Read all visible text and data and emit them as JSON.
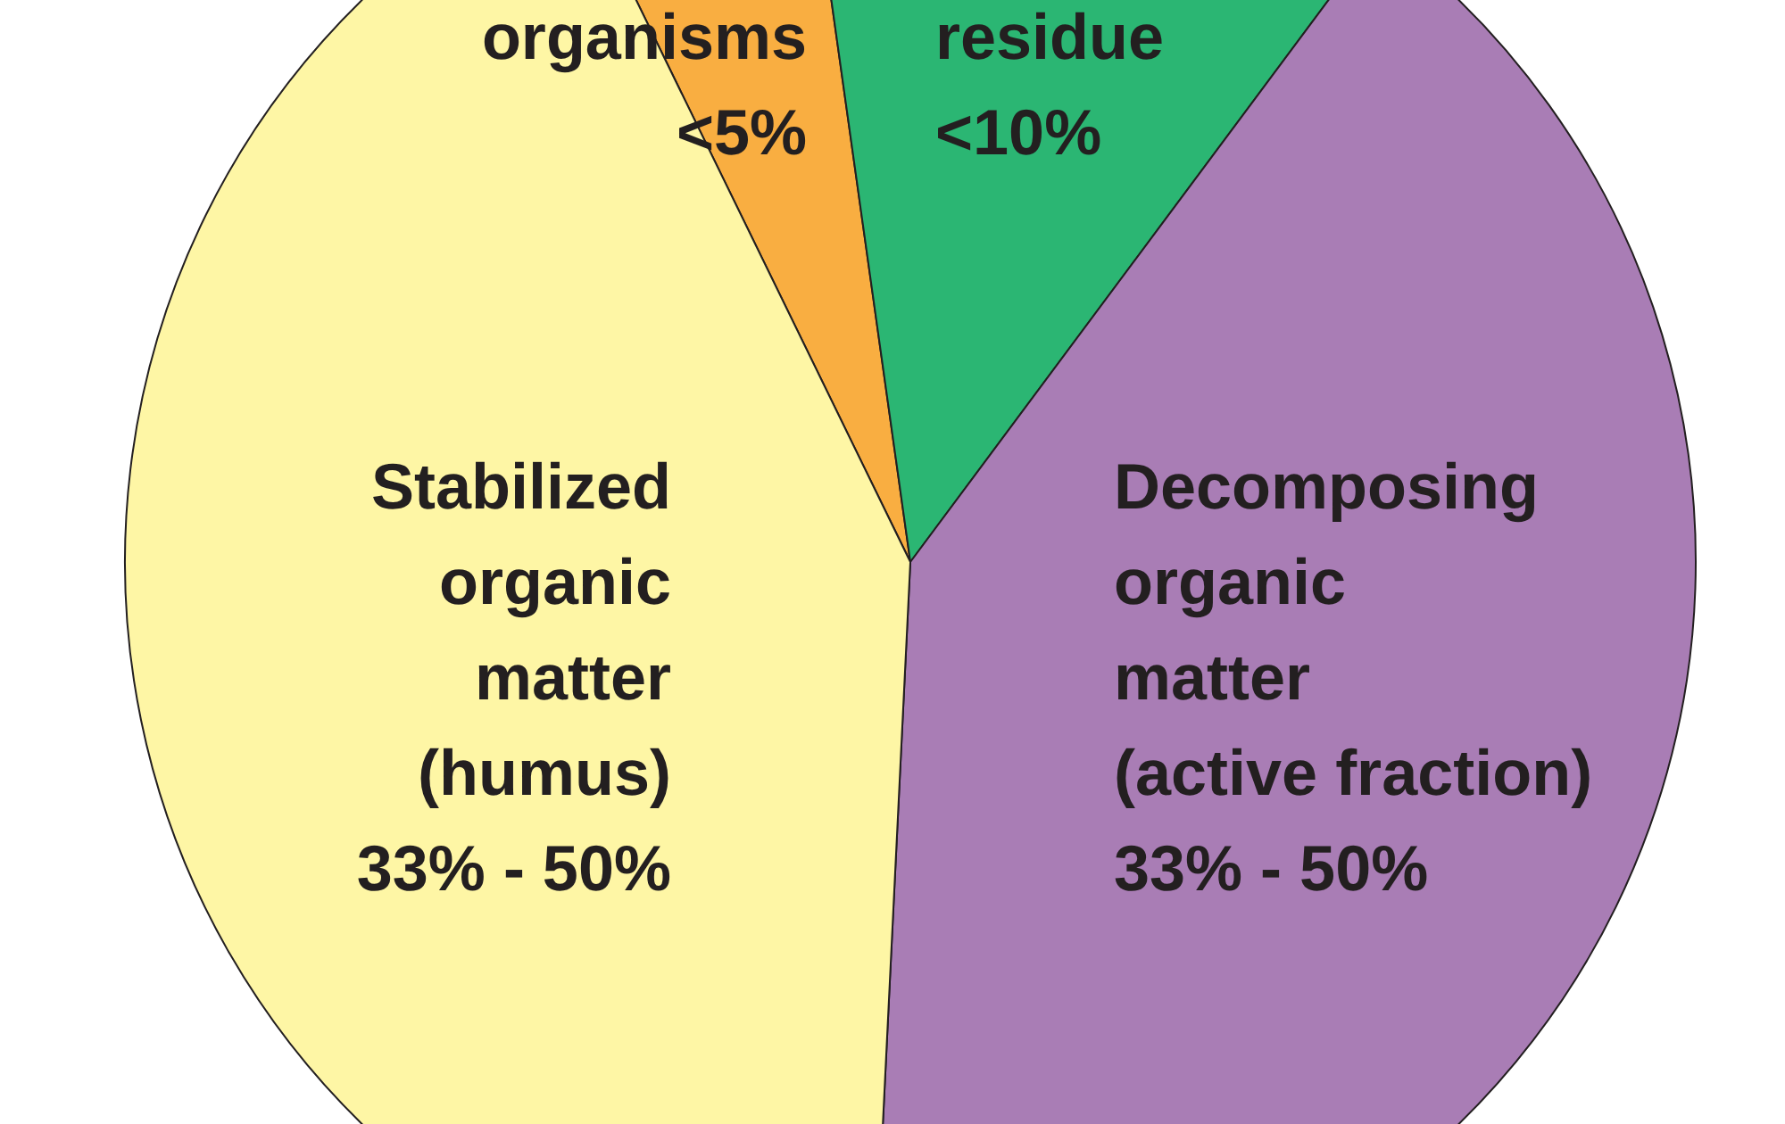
{
  "chart_data": {
    "type": "pie",
    "categories": [
      "organisms",
      "residue",
      "Decomposing\norganic\nmatter\n(active fraction)",
      "Stabilized\norganic\nmatter\n(humus)"
    ],
    "values": [
      5,
      12.4,
      40.6,
      42
    ],
    "colors": [
      "#f9ae41",
      "#2bb673",
      "#a97db5",
      "#fef6a5"
    ],
    "annotations": [
      "<5%",
      "<10%",
      "33% - 50%",
      "33% - 50%"
    ]
  }
}
